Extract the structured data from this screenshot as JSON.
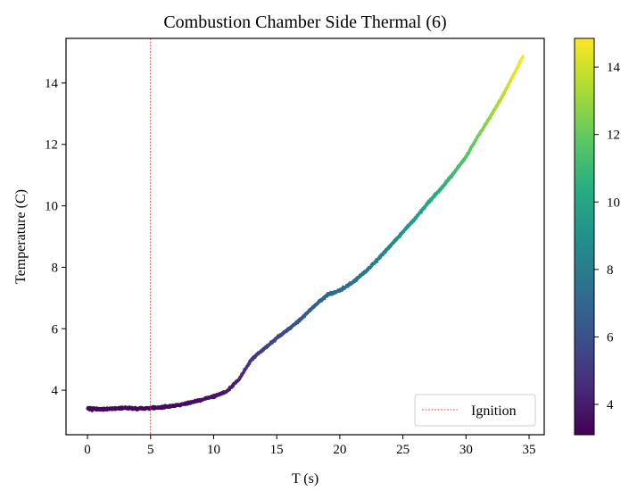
{
  "chart_data": {
    "type": "scatter",
    "title": "Combustion Chamber Side Thermal (6)",
    "xlabel": "T (s)",
    "ylabel": "Temperature (C)",
    "xlim": [
      -1.7,
      36.2
    ],
    "ylim": [
      2.55,
      15.45
    ],
    "xticks": [
      0,
      5,
      10,
      15,
      20,
      25,
      30,
      35
    ],
    "yticks": [
      4,
      6,
      8,
      10,
      12,
      14
    ],
    "grid": false,
    "colormap": "viridis",
    "color_by": "y",
    "colorbar": {
      "range": [
        3.1,
        14.85
      ],
      "ticks": [
        4,
        6,
        8,
        10,
        12,
        14
      ]
    },
    "x": [
      0,
      1,
      2,
      3,
      4,
      5,
      6,
      7,
      8,
      9,
      10,
      11,
      12,
      13,
      14,
      15,
      16,
      17,
      18,
      19,
      20,
      21,
      22,
      23,
      24,
      25,
      26,
      27,
      28,
      29,
      30,
      31,
      32,
      33,
      34,
      34.5
    ],
    "y": [
      3.4,
      3.38,
      3.4,
      3.42,
      3.4,
      3.42,
      3.45,
      3.5,
      3.58,
      3.68,
      3.8,
      3.95,
      4.35,
      5.0,
      5.35,
      5.7,
      6.0,
      6.35,
      6.75,
      7.1,
      7.25,
      7.5,
      7.85,
      8.25,
      8.7,
      9.15,
      9.6,
      10.1,
      10.55,
      11.05,
      11.6,
      12.3,
      12.95,
      13.65,
      14.45,
      14.85
    ],
    "noise": 0.08,
    "vline": {
      "x": 5,
      "label": "Ignition",
      "color": "#d62728"
    },
    "legend_position": "lower right"
  }
}
